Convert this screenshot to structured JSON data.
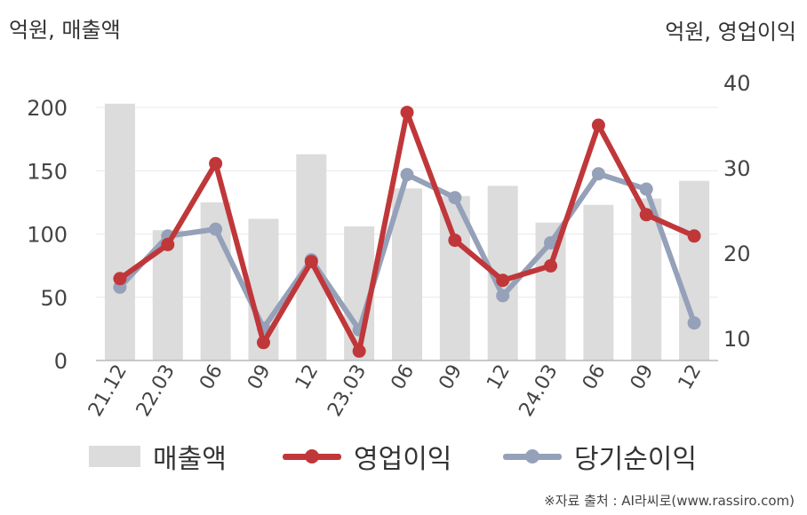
{
  "units": {
    "left": "억원, 매출액",
    "right": "억원, 영업이익"
  },
  "source": "※자료 출처 : AI라씨로(www.rassiro.com)",
  "chart_data": {
    "type": "bar",
    "categories": [
      "21.12",
      "22.03",
      "06",
      "09",
      "12",
      "23.03",
      "06",
      "09",
      "12",
      "24.03",
      "06",
      "09",
      "12"
    ],
    "y_left": {
      "range": [
        0,
        200
      ],
      "ticks": [
        0,
        50,
        100,
        150,
        200
      ]
    },
    "y_right": {
      "ticks": [
        10,
        20,
        30,
        40
      ]
    },
    "grid": true,
    "legend_position": "bottom",
    "series": [
      {
        "name": "매출액",
        "kind": "bar",
        "axis": "left",
        "color": "#dcdcdc",
        "values": [
          203,
          103,
          125,
          112,
          163,
          106,
          136,
          130,
          138,
          109,
          123,
          128,
          142
        ]
      },
      {
        "name": "영업이익",
        "kind": "line",
        "axis": "right",
        "color": "#c0373a",
        "values": [
          17.0,
          21.0,
          30.5,
          9.5,
          19.0,
          8.5,
          36.5,
          21.5,
          16.8,
          18.5,
          35.0,
          24.5,
          22.0
        ]
      },
      {
        "name": "당기순이익",
        "kind": "line",
        "axis": "right",
        "color": "#95a1b9",
        "values": [
          16.0,
          22.0,
          22.8,
          11.2,
          19.2,
          11.0,
          29.2,
          26.5,
          15.0,
          21.2,
          29.3,
          27.5,
          11.8
        ]
      }
    ]
  }
}
